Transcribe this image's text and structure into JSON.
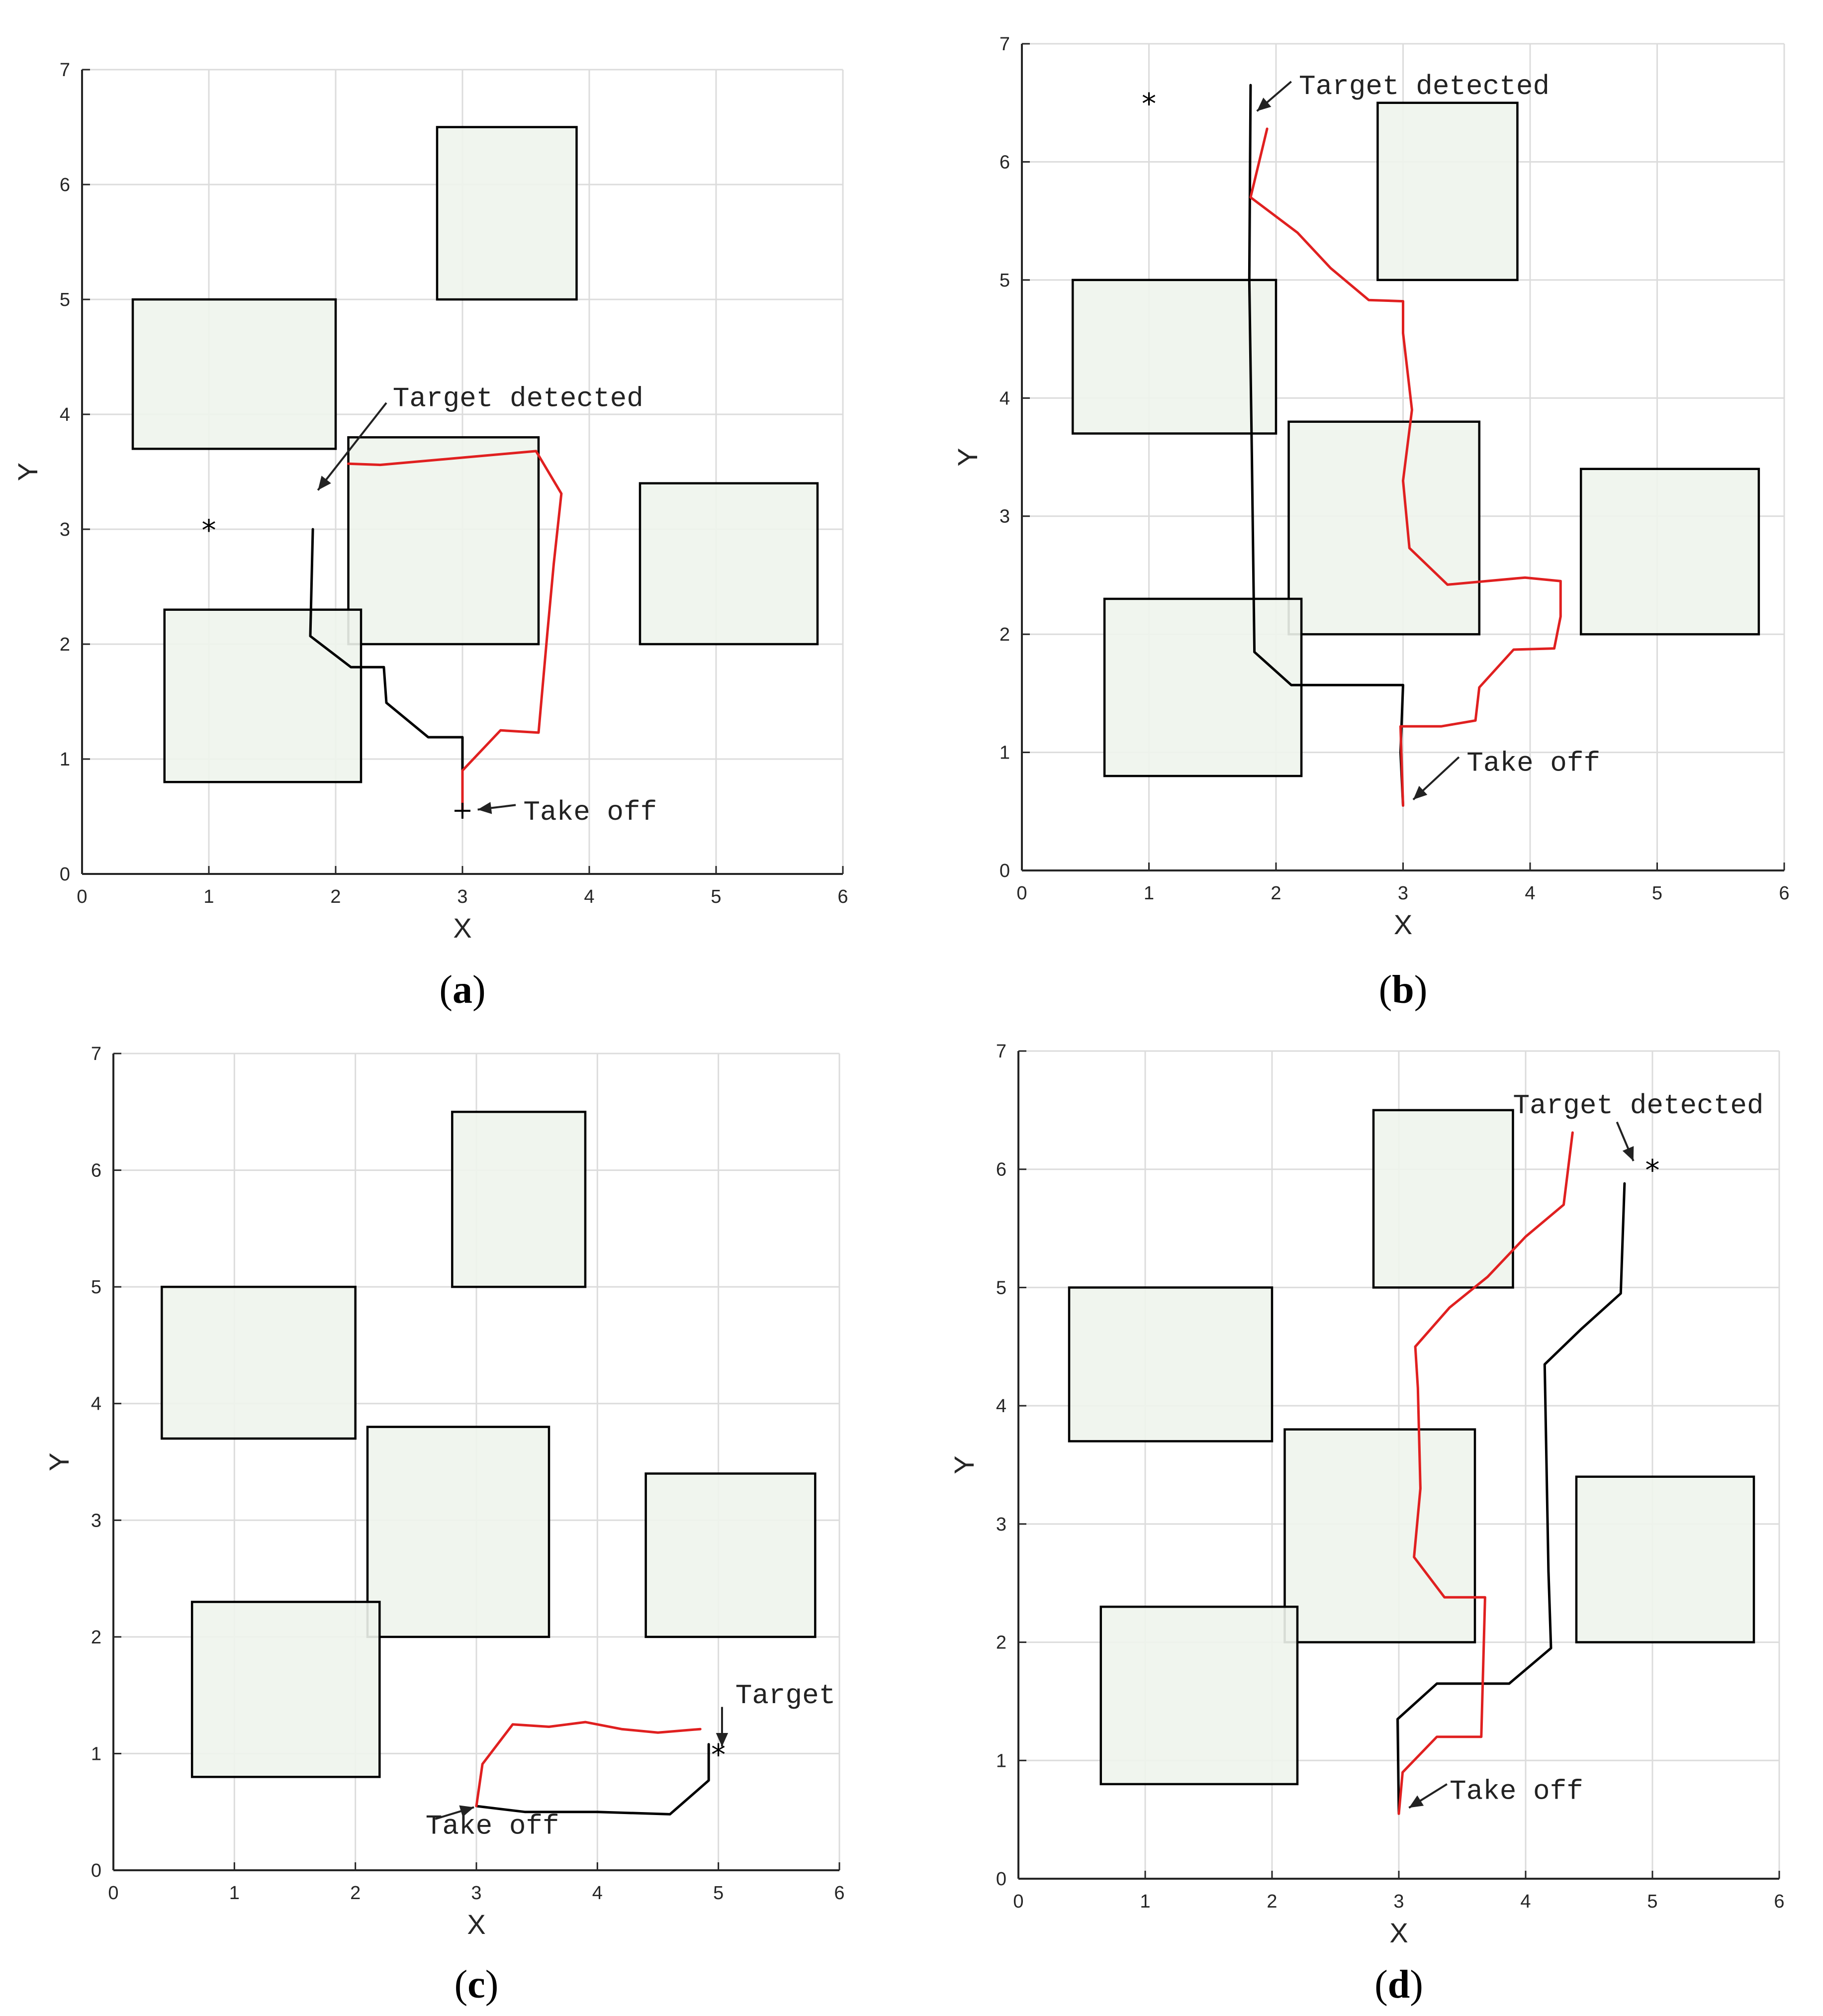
{
  "chart_data": [
    {
      "panel": "(a)",
      "type": "line",
      "xlabel": "X",
      "ylabel": "Y",
      "xlim": [
        0,
        6
      ],
      "ylim": [
        0,
        7
      ],
      "xticks": [
        0,
        1,
        2,
        3,
        4,
        5,
        6
      ],
      "yticks": [
        0,
        1,
        2,
        3,
        4,
        5,
        6,
        7
      ],
      "grid": true,
      "obstacles": [
        {
          "x0": 2.8,
          "x1": 3.9,
          "y0": 5.0,
          "y1": 6.5
        },
        {
          "x0": 0.4,
          "x1": 2.0,
          "y0": 3.7,
          "y1": 5.0
        },
        {
          "x0": 2.1,
          "x1": 3.6,
          "y0": 2.0,
          "y1": 3.8
        },
        {
          "x0": 4.4,
          "x1": 5.8,
          "y0": 2.0,
          "y1": 3.4
        },
        {
          "x0": 0.65,
          "x1": 2.2,
          "y0": 0.8,
          "y1": 2.3
        }
      ],
      "series": [
        {
          "color": "#000000",
          "points": [
            [
              3.0,
              0.55
            ],
            [
              3.0,
              1.19
            ],
            [
              2.73,
              1.19
            ],
            [
              2.4,
              1.49
            ],
            [
              2.38,
              1.8
            ],
            [
              2.12,
              1.8
            ],
            [
              1.8,
              2.07
            ],
            [
              1.82,
              3.0
            ]
          ]
        },
        {
          "color": "#e02020",
          "points": [
            [
              3.0,
              0.55
            ],
            [
              3.0,
              0.9
            ],
            [
              3.3,
              1.25
            ],
            [
              3.6,
              1.23
            ],
            [
              3.67,
              2.1
            ],
            [
              3.72,
              2.7
            ],
            [
              3.78,
              3.31
            ],
            [
              3.58,
              3.68
            ],
            [
              2.35,
              3.56
            ],
            [
              2.1,
              3.57
            ]
          ]
        }
      ],
      "markers": [
        {
          "symbol": "*",
          "x": 1.0,
          "y": 3.0
        },
        {
          "symbol": "+",
          "x": 3.0,
          "y": 0.55
        }
      ],
      "annotations": [
        {
          "text": "Target detected",
          "x": 2.45,
          "y": 4.15,
          "arrow_from": [
            2.4,
            4.1
          ],
          "arrow_to": [
            1.86,
            3.34
          ]
        },
        {
          "text": "Take off",
          "x": 3.48,
          "y": 0.55,
          "arrow_from": [
            3.42,
            0.6
          ],
          "arrow_to": [
            3.12,
            0.56
          ]
        }
      ]
    },
    {
      "panel": "(b)",
      "type": "line",
      "xlabel": "X",
      "ylabel": "Y",
      "xlim": [
        0,
        6
      ],
      "ylim": [
        0,
        7
      ],
      "xticks": [
        0,
        1,
        2,
        3,
        4,
        5,
        6
      ],
      "yticks": [
        0,
        1,
        2,
        3,
        4,
        5,
        6,
        7
      ],
      "grid": true,
      "obstacles": [
        {
          "x0": 2.8,
          "x1": 3.9,
          "y0": 5.0,
          "y1": 6.5
        },
        {
          "x0": 0.4,
          "x1": 2.0,
          "y0": 3.7,
          "y1": 5.0
        },
        {
          "x0": 2.1,
          "x1": 3.6,
          "y0": 2.0,
          "y1": 3.8
        },
        {
          "x0": 4.4,
          "x1": 5.8,
          "y0": 2.0,
          "y1": 3.4
        },
        {
          "x0": 0.65,
          "x1": 2.2,
          "y0": 0.8,
          "y1": 2.3
        }
      ],
      "series": [
        {
          "color": "#000000",
          "points": [
            [
              3.0,
              0.55
            ],
            [
              2.98,
              1.0
            ],
            [
              3.0,
              1.57
            ],
            [
              2.12,
              1.57
            ],
            [
              1.83,
              1.85
            ],
            [
              1.81,
              3.5
            ],
            [
              1.79,
              5.0
            ],
            [
              1.8,
              6.65
            ]
          ]
        },
        {
          "color": "#e02020",
          "points": [
            [
              3.0,
              0.55
            ],
            [
              2.98,
              1.22
            ],
            [
              3.3,
              1.22
            ],
            [
              3.57,
              1.27
            ],
            [
              3.6,
              1.55
            ],
            [
              3.87,
              1.87
            ],
            [
              4.19,
              1.88
            ],
            [
              4.24,
              2.15
            ],
            [
              4.24,
              2.45
            ],
            [
              3.96,
              2.48
            ],
            [
              3.35,
              2.42
            ],
            [
              3.05,
              2.73
            ],
            [
              3.0,
              3.3
            ],
            [
              3.07,
              3.9
            ],
            [
              3.0,
              4.55
            ],
            [
              3.0,
              4.82
            ],
            [
              2.73,
              4.83
            ],
            [
              2.43,
              5.1
            ],
            [
              2.17,
              5.4
            ],
            [
              1.8,
              5.7
            ],
            [
              1.93,
              6.28
            ]
          ]
        }
      ],
      "markers": [
        {
          "symbol": "*",
          "x": 1.0,
          "y": 6.5
        }
      ],
      "annotations": [
        {
          "text": "Target detected",
          "x": 2.18,
          "y": 6.65,
          "arrow_from": [
            2.12,
            6.68
          ],
          "arrow_to": [
            1.85,
            6.43
          ]
        },
        {
          "text": "Take off",
          "x": 3.5,
          "y": 0.92,
          "arrow_from": [
            3.44,
            0.96
          ],
          "arrow_to": [
            3.08,
            0.6
          ]
        }
      ]
    },
    {
      "panel": "(c)",
      "type": "line",
      "xlabel": "X",
      "ylabel": "Y",
      "xlim": [
        0,
        6
      ],
      "ylim": [
        0,
        7
      ],
      "xticks": [
        0,
        1,
        2,
        3,
        4,
        5,
        6
      ],
      "yticks": [
        0,
        1,
        2,
        3,
        4,
        5,
        6,
        7
      ],
      "grid": true,
      "obstacles": [
        {
          "x0": 2.8,
          "x1": 3.9,
          "y0": 5.0,
          "y1": 6.5
        },
        {
          "x0": 0.4,
          "x1": 2.0,
          "y0": 3.7,
          "y1": 5.0
        },
        {
          "x0": 2.1,
          "x1": 3.6,
          "y0": 2.0,
          "y1": 3.8
        },
        {
          "x0": 4.4,
          "x1": 5.8,
          "y0": 2.0,
          "y1": 3.4
        },
        {
          "x0": 0.65,
          "x1": 2.2,
          "y0": 0.8,
          "y1": 2.3
        }
      ],
      "series": [
        {
          "color": "#000000",
          "points": [
            [
              3.0,
              0.55
            ],
            [
              3.4,
              0.5
            ],
            [
              4.0,
              0.5
            ],
            [
              4.6,
              0.48
            ],
            [
              4.92,
              0.77
            ],
            [
              4.92,
              1.08
            ]
          ]
        },
        {
          "color": "#e02020",
          "points": [
            [
              3.0,
              0.55
            ],
            [
              3.05,
              0.91
            ],
            [
              3.3,
              1.25
            ],
            [
              3.6,
              1.23
            ],
            [
              3.9,
              1.27
            ],
            [
              4.2,
              1.21
            ],
            [
              4.5,
              1.18
            ],
            [
              4.85,
              1.21
            ]
          ]
        }
      ],
      "markers": [
        {
          "symbol": "*",
          "x": 5.0,
          "y": 1.0
        }
      ],
      "annotations": [
        {
          "text": "Take off",
          "x": 2.58,
          "y": 0.39,
          "arrow_from": [
            2.66,
            0.44
          ],
          "arrow_to": [
            2.98,
            0.54
          ]
        },
        {
          "text": "Target",
          "x": 5.14,
          "y": 1.51,
          "arrow_from": [
            5.03,
            1.4
          ],
          "arrow_to": [
            5.03,
            1.06
          ]
        }
      ]
    },
    {
      "panel": "(d)",
      "type": "line",
      "xlabel": "X",
      "ylabel": "Y",
      "xlim": [
        0,
        6
      ],
      "ylim": [
        0,
        7
      ],
      "xticks": [
        0,
        1,
        2,
        3,
        4,
        5,
        6
      ],
      "yticks": [
        0,
        1,
        2,
        3,
        4,
        5,
        6,
        7
      ],
      "grid": true,
      "obstacles": [
        {
          "x0": 2.8,
          "x1": 3.9,
          "y0": 5.0,
          "y1": 6.5
        },
        {
          "x0": 0.4,
          "x1": 2.0,
          "y0": 3.7,
          "y1": 5.0
        },
        {
          "x0": 2.1,
          "x1": 3.6,
          "y0": 2.0,
          "y1": 3.8
        },
        {
          "x0": 4.4,
          "x1": 5.8,
          "y0": 2.0,
          "y1": 3.4
        },
        {
          "x0": 0.65,
          "x1": 2.2,
          "y0": 0.8,
          "y1": 2.3
        }
      ],
      "series": [
        {
          "color": "#000000",
          "points": [
            [
              3.0,
              0.55
            ],
            [
              2.99,
              1.35
            ],
            [
              3.3,
              1.65
            ],
            [
              3.87,
              1.65
            ],
            [
              4.2,
              1.95
            ],
            [
              4.18,
              2.6
            ],
            [
              4.15,
              4.35
            ],
            [
              4.44,
              4.65
            ],
            [
              4.75,
              4.95
            ],
            [
              4.78,
              5.88
            ]
          ]
        },
        {
          "color": "#e02020",
          "points": [
            [
              3.0,
              0.55
            ],
            [
              3.03,
              0.9
            ],
            [
              3.3,
              1.2
            ],
            [
              3.65,
              1.2
            ],
            [
              3.68,
              2.38
            ],
            [
              3.36,
              2.38
            ],
            [
              3.12,
              2.72
            ],
            [
              3.17,
              3.3
            ],
            [
              3.15,
              4.15
            ],
            [
              3.13,
              4.5
            ],
            [
              3.4,
              4.83
            ],
            [
              3.7,
              5.09
            ],
            [
              4.0,
              5.43
            ],
            [
              4.3,
              5.7
            ],
            [
              4.37,
              6.31
            ]
          ]
        }
      ],
      "markers": [
        {
          "symbol": "*",
          "x": 5.0,
          "y": 6.0
        }
      ],
      "annotations": [
        {
          "text": "Target detected",
          "x": 3.9,
          "y": 6.55,
          "arrow_from": [
            4.72,
            6.4
          ],
          "arrow_to": [
            4.85,
            6.07
          ]
        },
        {
          "text": "Take off",
          "x": 3.4,
          "y": 0.75,
          "arrow_from": [
            3.38,
            0.8
          ],
          "arrow_to": [
            3.08,
            0.6
          ]
        }
      ]
    }
  ],
  "panels": [
    {
      "caption_letter": "a"
    },
    {
      "caption_letter": "b"
    },
    {
      "caption_letter": "c"
    },
    {
      "caption_letter": "d"
    }
  ],
  "colors": {
    "obstacle_fill": "#eef4ec",
    "grid": "#dcdcdc",
    "axis": "#262626",
    "path_black": "#000000",
    "path_red": "#e02020"
  }
}
